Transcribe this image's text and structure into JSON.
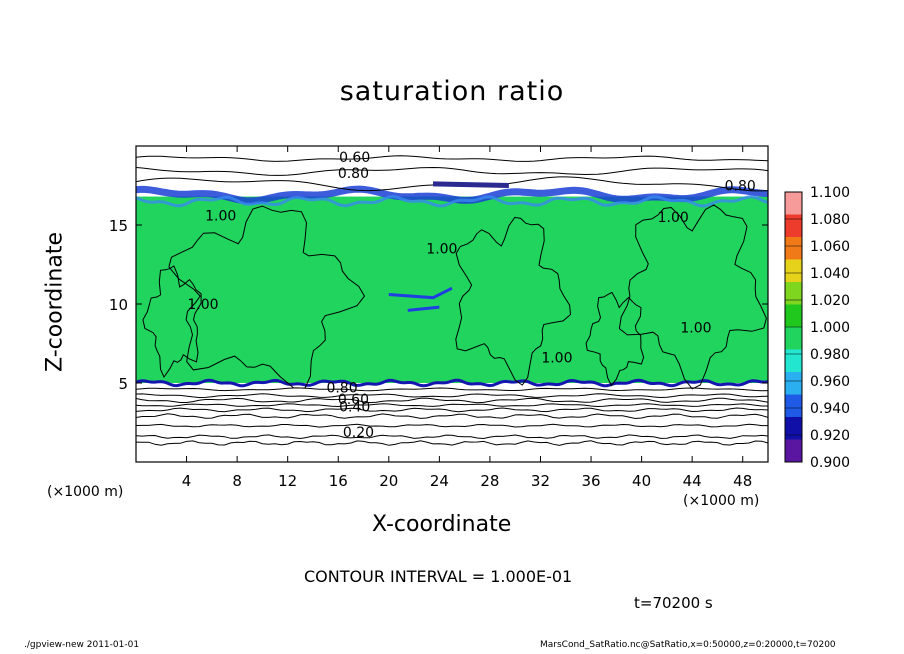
{
  "chart_data": {
    "type": "heatmap",
    "title": "saturation ratio",
    "xlabel": "X-coordinate",
    "ylabel": "Z-coordinate",
    "x_unit": "(×1000 m)",
    "z_unit": "(×1000 m)",
    "x_ticks": [
      4,
      8,
      12,
      16,
      20,
      24,
      28,
      32,
      36,
      40,
      44,
      48
    ],
    "y_ticks": [
      5,
      10,
      15
    ],
    "xlim": [
      0,
      50
    ],
    "ylim": [
      0,
      20
    ],
    "colorbar": {
      "levels": [
        "0.900",
        "0.920",
        "0.940",
        "0.960",
        "0.980",
        "1.000",
        "1.020",
        "1.040",
        "1.060",
        "1.080",
        "1.100"
      ],
      "colors": [
        "#5a16a0",
        "#1010a8",
        "#1f5ae6",
        "#2ab0f0",
        "#22e6d0",
        "#21d45e",
        "#20c81e",
        "#7fd61e",
        "#e6d21a",
        "#f07a18",
        "#ee3c2c",
        "#f79a9a"
      ]
    },
    "contour_labels": [
      {
        "text": "0.60",
        "x": 17.3,
        "z": 19.3
      },
      {
        "text": "0.80",
        "x": 17.2,
        "z": 18.3
      },
      {
        "text": "0.80",
        "x": 47.8,
        "z": 17.5
      },
      {
        "text": "1.00",
        "x": 6.7,
        "z": 15.6
      },
      {
        "text": "1.00",
        "x": 42.5,
        "z": 15.5
      },
      {
        "text": "1.00",
        "x": 24.2,
        "z": 13.5
      },
      {
        "text": "1.00",
        "x": 5.3,
        "z": 10.0
      },
      {
        "text": "1.00",
        "x": 44.3,
        "z": 8.5
      },
      {
        "text": "1.00",
        "x": 33.3,
        "z": 6.6
      },
      {
        "text": "0.80",
        "x": 16.3,
        "z": 4.7
      },
      {
        "text": "0.60",
        "x": 17.2,
        "z": 4.0
      },
      {
        "text": "0.40",
        "x": 17.3,
        "z": 3.5
      },
      {
        "text": "0.20",
        "x": 17.6,
        "z": 1.9
      }
    ],
    "bands": {
      "saturated_layer_z": [
        5.0,
        16.8
      ],
      "subsaturated_cloud_top_z": [
        16.8,
        17.5
      ]
    },
    "contour_interval": 0.1,
    "time_s": 70200
  },
  "contour_interval_text": "CONTOUR INTERVAL = 1.000E-01",
  "time_text": "t=70200 s",
  "footer_left": "./gpview-new  2011-01-01",
  "footer_right": "MarsCond_SatRatio.nc@SatRatio,x=0:50000,z=0:20000,t=70200"
}
